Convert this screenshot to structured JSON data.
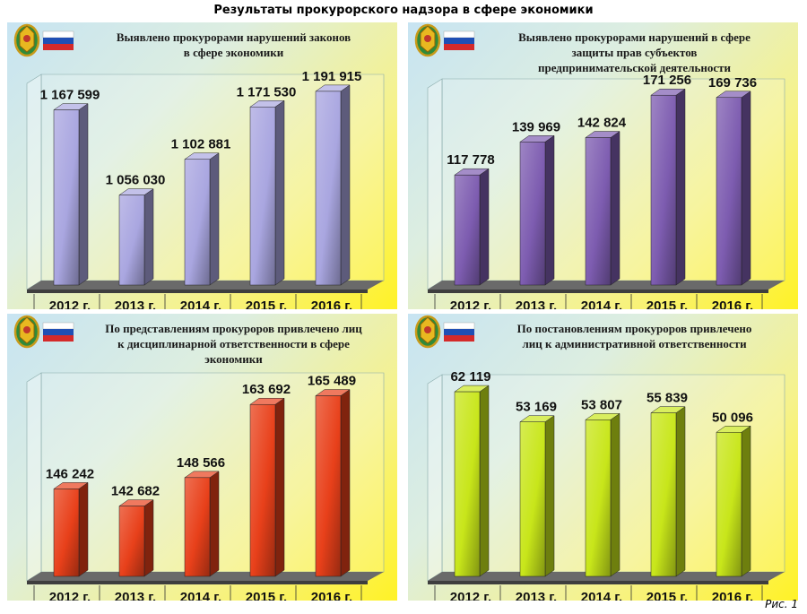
{
  "title": "Результаты прокурорского надзора в сфере экономики",
  "caption": "Рис. 1",
  "icons": {
    "emblem": "prosecutor-emblem-icon",
    "flag": "russian-flag-icon"
  },
  "chart_data": [
    {
      "type": "bar",
      "title": "Выявлено прокурорами нарушений законов\nв сфере экономики",
      "categories": [
        "2012 г.",
        "2013 г.",
        "2014 г.",
        "2015 г.",
        "2016 г."
      ],
      "values": [
        1167599,
        1056030,
        1102881,
        1171530,
        1191915
      ],
      "value_labels": [
        "1 167 599",
        "1 056 030",
        "1 102 881",
        "1 171 530",
        "1 191 915"
      ],
      "bar_color": "#a9a6e0",
      "ylim": [
        950000,
        1200000
      ],
      "grid": false
    },
    {
      "type": "bar",
      "title": "Выявлено прокурорами нарушений в сфере\nзащиты прав субъектов\nпредпринимательской деятельности",
      "categories": [
        "2012 г.",
        "2013 г.",
        "2014 г.",
        "2015 г.",
        "2016 г."
      ],
      "values": [
        117778,
        139969,
        142824,
        171256,
        169736
      ],
      "value_labels": [
        "117 778",
        "139 969",
        "142 824",
        "171 256",
        "169 736"
      ],
      "bar_color": "#7d5cb0",
      "ylim": [
        50000,
        175000
      ],
      "grid": false
    },
    {
      "type": "bar",
      "title": "По представлениям прокуроров привлечено лиц\nк дисциплинарной ответственности в сфере\nэкономики",
      "categories": [
        "2012 г.",
        "2013 г.",
        "2014 г.",
        "2015 г.",
        "2016 г."
      ],
      "values": [
        146242,
        142682,
        148566,
        163692,
        165489
      ],
      "value_labels": [
        "146 242",
        "142 682",
        "148 566",
        "163 692",
        "165 489"
      ],
      "bar_color": "#e8401a",
      "ylim": [
        130000,
        168000
      ],
      "grid": false
    },
    {
      "type": "bar",
      "title": "По постановлениям прокуроров привлечено\nлиц к административной ответственности",
      "categories": [
        "2012 г.",
        "2013 г.",
        "2014 г.",
        "2015 г.",
        "2016 г."
      ],
      "values": [
        62119,
        53169,
        53807,
        55839,
        50096
      ],
      "value_labels": [
        "62 119",
        "53 169",
        "53 807",
        "55 839",
        "50 096"
      ],
      "bar_color": "#c8e61a",
      "ylim": [
        10000,
        64000
      ],
      "grid": false
    }
  ]
}
